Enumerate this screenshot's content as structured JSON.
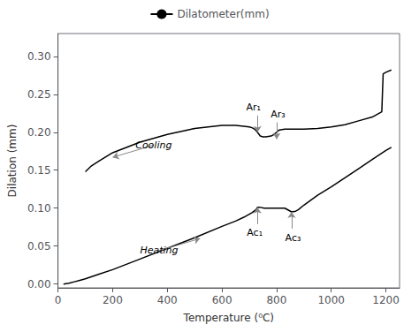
{
  "chart_data": {
    "type": "line",
    "xlabel": "Temperature (⁰C)",
    "ylabel": "Dilation (mm)",
    "xlim": [
      0,
      1250
    ],
    "ylim": [
      -0.005,
      0.33
    ],
    "xticks": [
      0,
      200,
      400,
      600,
      800,
      1000,
      1200
    ],
    "yticks": [
      {
        "value": 0.0,
        "label": "0.00"
      },
      {
        "value": 0.05,
        "label": "0.05"
      },
      {
        "value": 0.1,
        "label": "0.10"
      },
      {
        "value": 0.15,
        "label": "0.15"
      },
      {
        "value": 0.2,
        "label": "0.20"
      },
      {
        "value": 0.25,
        "label": "0.25"
      },
      {
        "value": 0.3,
        "label": "0.30"
      }
    ],
    "grid": false,
    "legend": "upper center",
    "series": [
      {
        "color": "#000000",
        "x": [
          20,
          40,
          60,
          80,
          100,
          150,
          200,
          300,
          400,
          500,
          600,
          650,
          680,
          710,
          725,
          730,
          740,
          755,
          770,
          800,
          830,
          855,
          870,
          880,
          900,
          950,
          1000,
          1050,
          1100,
          1150,
          1200,
          1220
        ],
        "values": [
          0.0,
          0.001,
          0.003,
          0.005,
          0.007,
          0.013,
          0.019,
          0.033,
          0.047,
          0.061,
          0.076,
          0.083,
          0.088,
          0.094,
          0.098,
          0.101,
          0.101,
          0.1,
          0.1,
          0.1,
          0.1,
          0.095,
          0.096,
          0.098,
          0.104,
          0.117,
          0.128,
          0.14,
          0.152,
          0.164,
          0.176,
          0.18
        ]
      },
      {
        "name": "Dilatometer(mm)",
        "color": "#000000",
        "x": [
          1220,
          1200,
          1190,
          1185,
          1150,
          1100,
          1050,
          1000,
          950,
          900,
          870,
          850,
          830,
          810,
          800,
          790,
          780,
          760,
          750,
          740,
          730,
          720,
          710,
          700,
          680,
          650,
          600,
          550,
          500,
          400,
          300,
          200,
          150,
          120,
          100
        ],
        "values": [
          0.282,
          0.279,
          0.277,
          0.227,
          0.22,
          0.215,
          0.21,
          0.207,
          0.205,
          0.204,
          0.204,
          0.204,
          0.204,
          0.203,
          0.2,
          0.197,
          0.195,
          0.194,
          0.194,
          0.195,
          0.2,
          0.204,
          0.206,
          0.207,
          0.208,
          0.209,
          0.209,
          0.207,
          0.205,
          0.197,
          0.187,
          0.173,
          0.162,
          0.155,
          0.148
        ]
      }
    ],
    "annotations": [
      {
        "text": "Ar₁",
        "x": 730,
        "y": 0.2,
        "arrow_from": [
          730,
          0.222
        ],
        "text_at": [
          715,
          0.224
        ],
        "color": "#888888"
      },
      {
        "text": "Ar₃",
        "x": 800,
        "y": 0.191,
        "arrow_from": [
          800,
          0.213
        ],
        "text_at": [
          805,
          0.215
        ],
        "color": "#888888"
      },
      {
        "text": "Ac₁",
        "x": 730,
        "y": 0.101,
        "arrow_from": [
          730,
          0.079
        ],
        "text_at": [
          720,
          0.076
        ],
        "color": "#888888"
      },
      {
        "text": "Ac₃",
        "x": 855,
        "y": 0.095,
        "arrow_from": [
          855,
          0.073
        ],
        "text_at": [
          860,
          0.07
        ],
        "color": "#888888"
      },
      {
        "text": "Cooling",
        "x": 200,
        "y": 0.167,
        "arrow_from": [
          350,
          0.183
        ],
        "color": "#888888"
      },
      {
        "text": "Heating",
        "x": 520,
        "y": 0.06,
        "arrow_from": [
          370,
          0.044
        ],
        "color": "#888888"
      }
    ]
  }
}
